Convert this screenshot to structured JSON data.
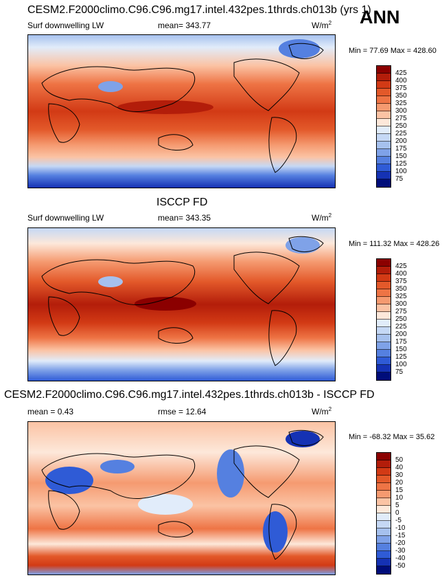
{
  "season": "ANN",
  "units_base": "W/m",
  "units_exp": "2",
  "panel1": {
    "title": "CESM2.F2000climo.C96.C96.mg17.intel.432pes.1thrds.ch013b (yrs 1)",
    "variable": "Surf downwelling LW",
    "stat": "mean= 343.77",
    "minmax": "Min =  77.69 Max = 428.60"
  },
  "panel2": {
    "title": "ISCCP FD",
    "variable": "Surf downwelling LW",
    "stat": "mean= 343.35",
    "minmax": "Min = 111.32 Max = 428.26"
  },
  "panel3": {
    "title": "CESM2.F2000climo.C96.C96.mg17.intel.432pes.1thrds.ch013b - ISCCP FD",
    "stat_left": "mean =   0.43",
    "stat_mid": "rmse =  12.64",
    "minmax": "Min = -68.32 Max =  35.62"
  },
  "colorbar_main": {
    "labels": [
      "425",
      "400",
      "375",
      "350",
      "325",
      "300",
      "275",
      "250",
      "225",
      "200",
      "175",
      "150",
      "125",
      "100",
      "75"
    ],
    "colors": [
      "#8b0000",
      "#b31d0a",
      "#d23a15",
      "#e3592a",
      "#ee7445",
      "#f59a70",
      "#fbc3a4",
      "#fde8da",
      "#e1ecfa",
      "#c5d8f5",
      "#a6c1ee",
      "#7fa2e8",
      "#5580e0",
      "#2f5bd6",
      "#1532b4",
      "#000d7a"
    ]
  },
  "colorbar_diff": {
    "labels": [
      "50",
      "40",
      "30",
      "20",
      "15",
      "10",
      "5",
      "0",
      "-5",
      "-10",
      "-15",
      "-20",
      "-30",
      "-40",
      "-50"
    ],
    "colors": [
      "#8b0000",
      "#b31d0a",
      "#d23a15",
      "#e3592a",
      "#ee7445",
      "#f59a70",
      "#fbc3a4",
      "#fde8da",
      "#e1ecfa",
      "#c5d8f5",
      "#a6c1ee",
      "#7fa2e8",
      "#5580e0",
      "#2f5bd6",
      "#1532b4",
      "#000d7a"
    ]
  }
}
